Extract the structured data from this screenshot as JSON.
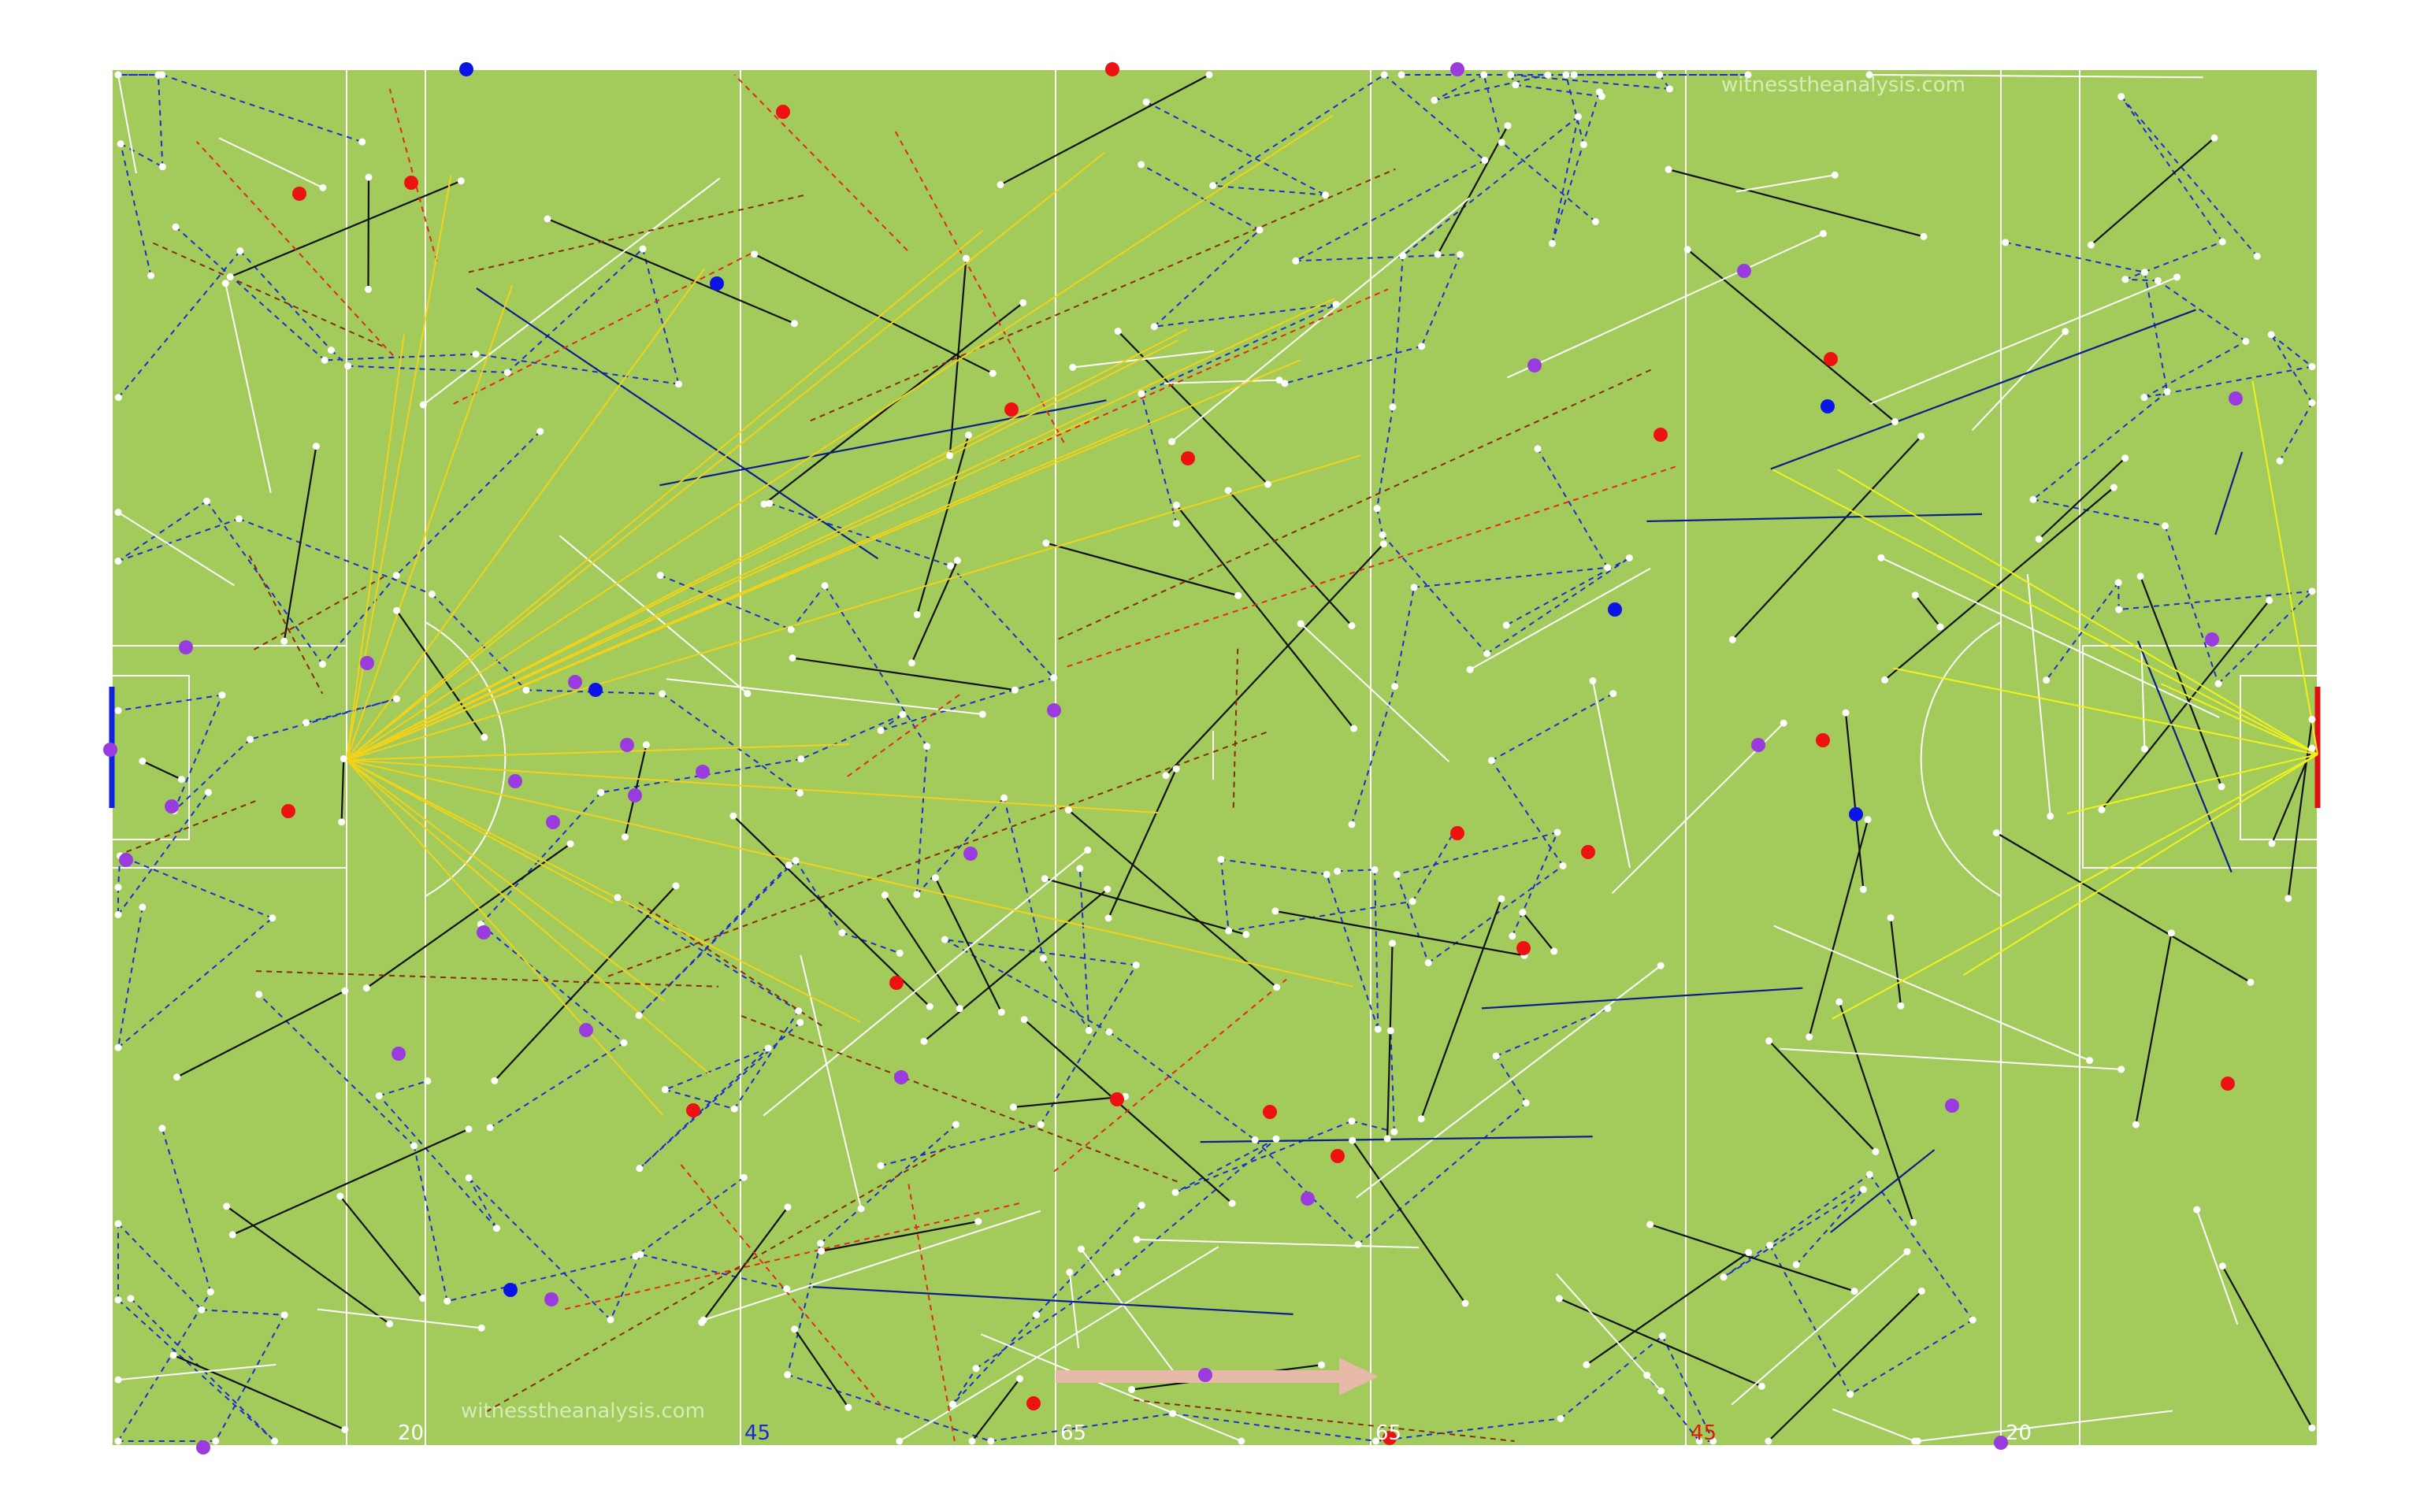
{
  "watermark_top": "witnesstheanalysis.com",
  "watermark_bottom": "witnesstheanalysis.com",
  "yard_labels": [
    {
      "text": "20",
      "color": "#ffffff"
    },
    {
      "text": "45",
      "color": "#1a2bd6"
    },
    {
      "text": "65",
      "color": "#ffffff"
    },
    {
      "text": "65",
      "color": "#ffffff"
    },
    {
      "text": "45",
      "color": "#e01b0b"
    },
    {
      "text": "20",
      "color": "#ffffff"
    }
  ],
  "colors": {
    "pitch": "#a2cb5c",
    "lines": "#ffffff",
    "team_blue": "#0a14e6",
    "team_red": "#ee1111",
    "purple": "#9a3be0",
    "attack_arrow": "#e6b9a8"
  },
  "legend": {
    "blue_dot": "blue-team-event",
    "red_dot": "red-team-event",
    "purple_dot": "neutral-event"
  }
}
